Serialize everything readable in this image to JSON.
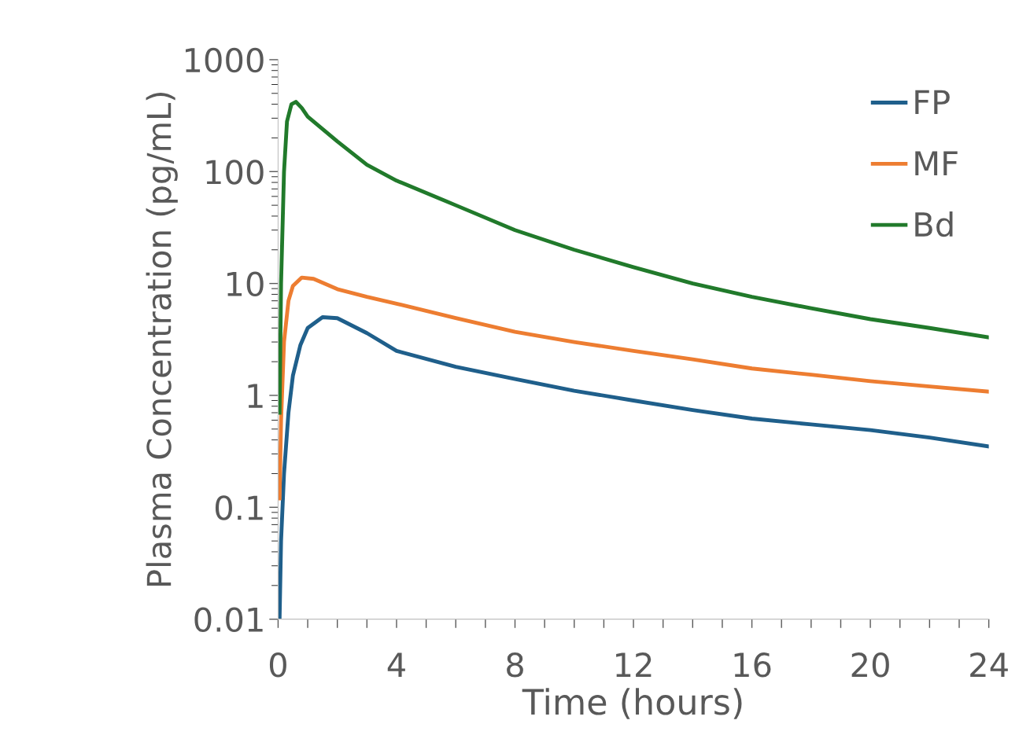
{
  "chart_data": {
    "type": "line",
    "xlabel": "Time (hours)",
    "ylabel": "Plasma Concentration (pg/mL)",
    "log": "y",
    "xlim": [
      0,
      24
    ],
    "xticks": [
      0,
      {
        "value": 1,
        "label": null
      },
      {
        "value": 2,
        "label": null
      },
      {
        "value": 3,
        "label": null
      },
      4,
      {
        "value": 5,
        "label": null
      },
      {
        "value": 6,
        "label": null
      },
      {
        "value": 7,
        "label": null
      },
      8,
      {
        "value": 9,
        "label": null
      },
      {
        "value": 10,
        "label": null
      },
      {
        "value": 11,
        "label": null
      },
      12,
      {
        "value": 13,
        "label": null
      },
      {
        "value": 14,
        "label": null
      },
      {
        "value": 15,
        "label": null
      },
      16,
      {
        "value": 17,
        "label": null
      },
      {
        "value": 18,
        "label": null
      },
      {
        "value": 19,
        "label": null
      },
      20,
      {
        "value": 21,
        "label": null
      },
      {
        "value": 22,
        "label": null
      },
      {
        "value": 23,
        "label": null
      },
      24
    ],
    "ylim": [
      0.01,
      1000
    ],
    "yticks": [
      0.01,
      0.1,
      1,
      10,
      100,
      1000
    ],
    "grid": false,
    "legend": "top right",
    "marker": "none",
    "line_style": "solid",
    "series": [
      {
        "name": "FP",
        "color": "#1f5f8b",
        "x": [
          0.05,
          0.1,
          0.2,
          0.35,
          0.5,
          0.75,
          1,
          1.5,
          2,
          3,
          4,
          6,
          8,
          10,
          12,
          14,
          16,
          18,
          20,
          22,
          24
        ],
        "values": [
          0.01,
          0.05,
          0.2,
          0.7,
          1.5,
          2.8,
          4.0,
          5.0,
          4.9,
          3.6,
          2.5,
          1.8,
          1.4,
          1.1,
          0.9,
          0.74,
          0.62,
          0.55,
          0.49,
          0.42,
          0.35
        ]
      },
      {
        "name": "MF",
        "color": "#ed7d31",
        "x": [
          0.05,
          0.1,
          0.2,
          0.35,
          0.5,
          0.8,
          1.2,
          2,
          3,
          4,
          6,
          8,
          10,
          12,
          14,
          16,
          18,
          20,
          22,
          24
        ],
        "values": [
          0.12,
          0.6,
          3,
          7,
          9.5,
          11.3,
          11,
          8.9,
          7.6,
          6.6,
          4.9,
          3.7,
          3.0,
          2.5,
          2.1,
          1.74,
          1.53,
          1.34,
          1.2,
          1.08
        ]
      },
      {
        "name": "Bd",
        "color": "#217a2b",
        "x": [
          0.05,
          0.1,
          0.2,
          0.3,
          0.45,
          0.6,
          0.8,
          1,
          1.5,
          2,
          3,
          4,
          6,
          8,
          10,
          12,
          14,
          16,
          18,
          20,
          22,
          24
        ],
        "values": [
          0.7,
          10,
          100,
          280,
          400,
          420,
          370,
          310,
          240,
          186,
          115,
          83,
          50,
          30,
          20,
          14,
          10,
          7.6,
          6,
          4.8,
          4,
          3.3
        ]
      }
    ]
  }
}
